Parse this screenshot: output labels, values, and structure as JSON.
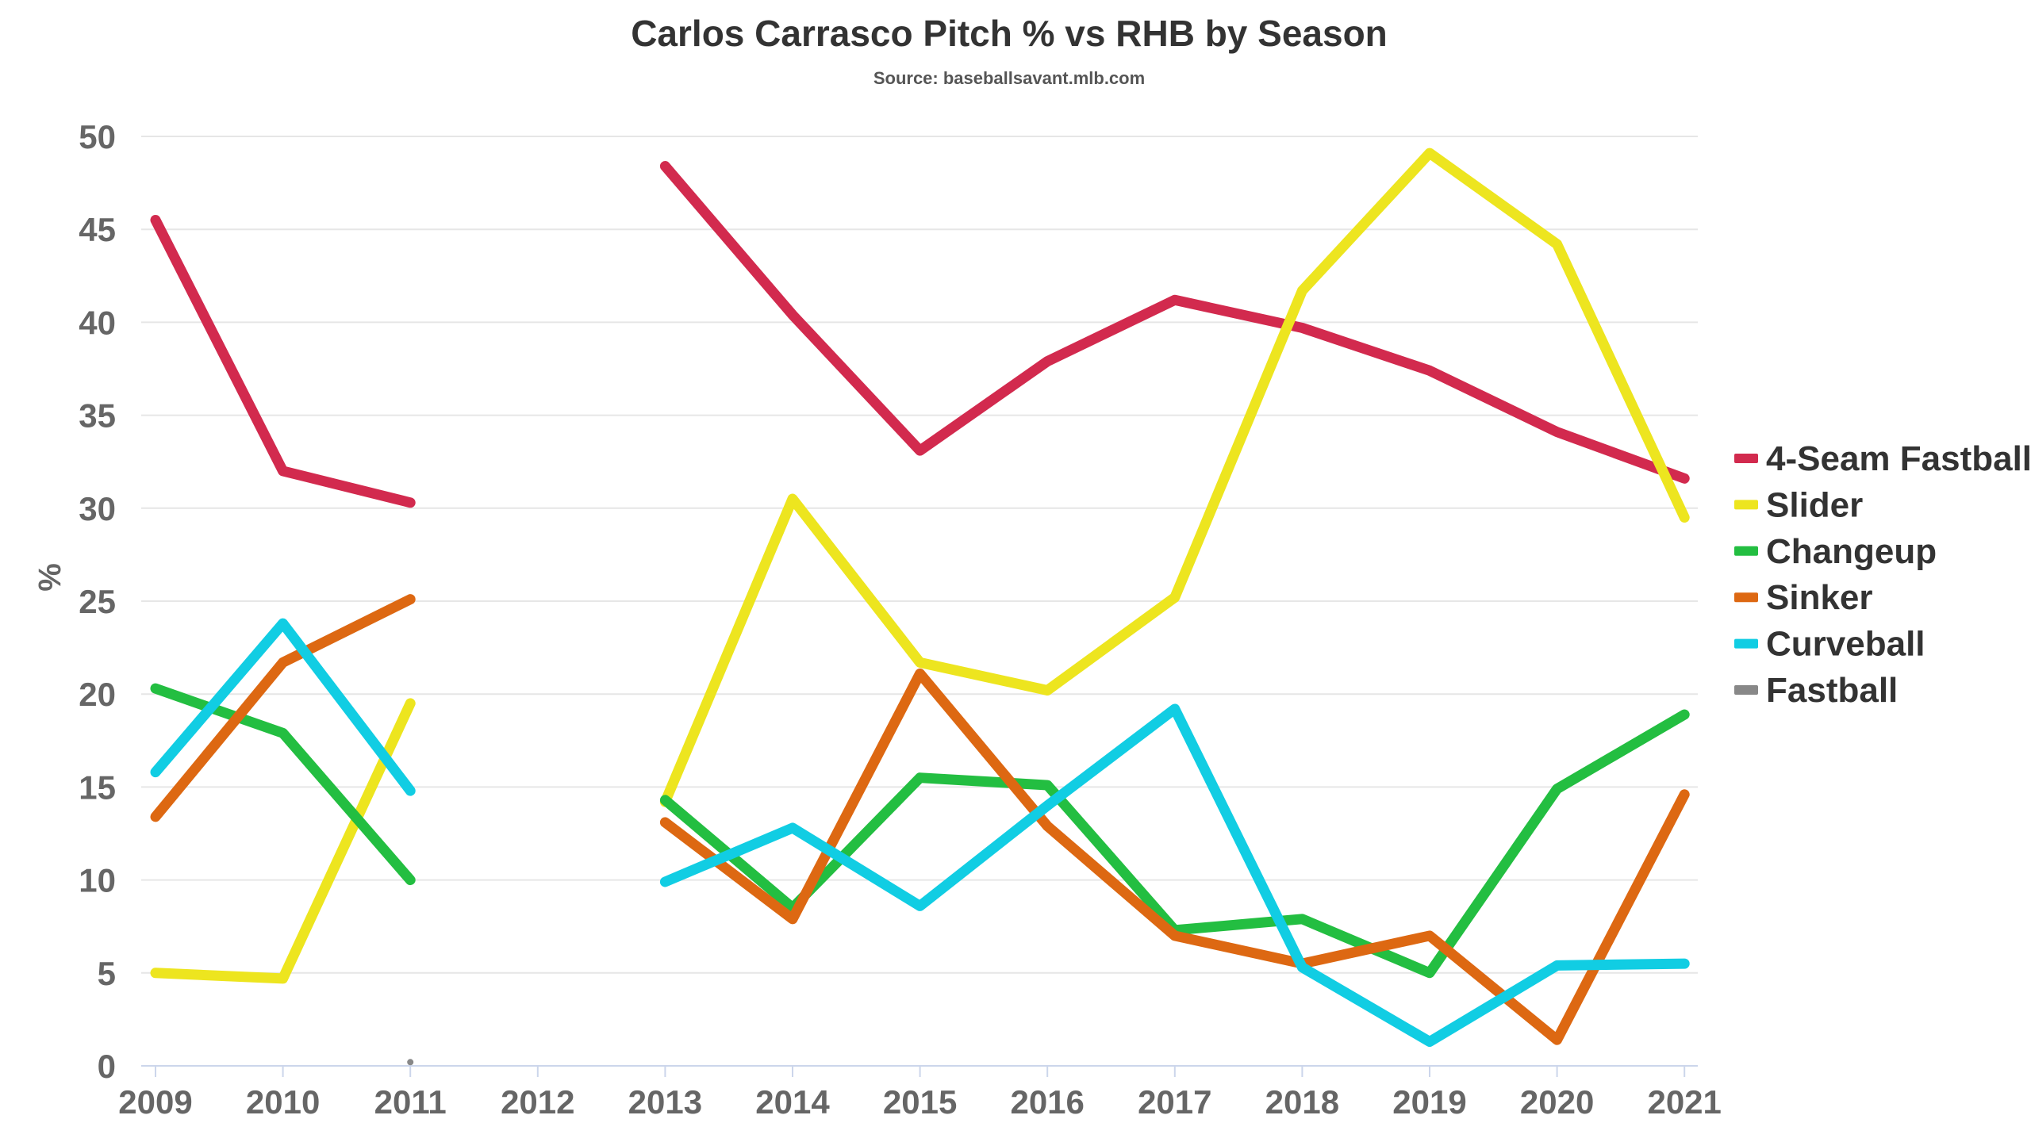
{
  "chart_data": {
    "type": "line",
    "title": "Carlos Carrasco Pitch % vs RHB by Season",
    "subtitle": "Source: baseballsavant.mlb.com",
    "xlabel": "",
    "ylabel": "%",
    "ylim": [
      0,
      50
    ],
    "yticks": [
      0,
      5,
      10,
      15,
      20,
      25,
      30,
      35,
      40,
      45,
      50
    ],
    "categories": [
      "2009",
      "2010",
      "2011",
      "2012",
      "2013",
      "2014",
      "2015",
      "2016",
      "2017",
      "2018",
      "2019",
      "2020",
      "2021"
    ],
    "grid": "horizontal",
    "legend_position": "right",
    "series": [
      {
        "name": "4-Seam Fastball",
        "color": "#d22a4e",
        "values": [
          45.5,
          32.0,
          30.3,
          null,
          48.4,
          40.4,
          33.1,
          37.9,
          41.2,
          39.7,
          37.4,
          34.1,
          31.6
        ]
      },
      {
        "name": "Slider",
        "color": "#ede51f",
        "values": [
          5.0,
          4.7,
          19.5,
          null,
          14.2,
          30.5,
          21.7,
          20.2,
          25.2,
          41.7,
          49.1,
          44.2,
          29.5
        ]
      },
      {
        "name": "Changeup",
        "color": "#23be41",
        "values": [
          20.3,
          17.9,
          10.0,
          null,
          14.3,
          8.5,
          15.5,
          15.1,
          7.3,
          7.9,
          5.0,
          14.9,
          18.9
        ]
      },
      {
        "name": "Sinker",
        "color": "#dd6812",
        "values": [
          13.4,
          21.7,
          25.1,
          null,
          13.1,
          7.9,
          21.1,
          12.9,
          7.0,
          5.5,
          7.0,
          1.4,
          14.6
        ]
      },
      {
        "name": "Curveball",
        "color": "#11cde3",
        "values": [
          15.8,
          23.8,
          14.8,
          null,
          9.9,
          12.8,
          8.6,
          14.0,
          19.2,
          5.3,
          1.3,
          5.4,
          5.5
        ]
      },
      {
        "name": "Fastball",
        "color": "#888888",
        "values": [
          null,
          null,
          0.2,
          null,
          null,
          null,
          null,
          null,
          null,
          null,
          null,
          null,
          null
        ]
      }
    ]
  }
}
